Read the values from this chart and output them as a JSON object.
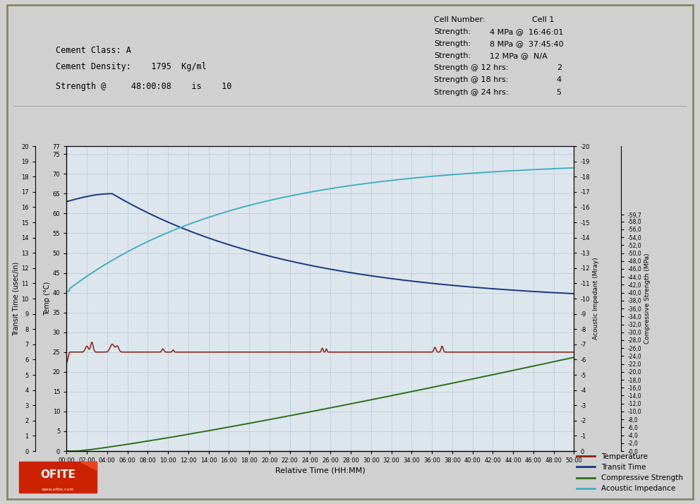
{
  "bg_color": "#d0d0d0",
  "plot_bg_color": "#dde6ed",
  "grid_color": "#b8c8d4",
  "title_info": {
    "cement_class": "Cement Class: A",
    "cement_density": "Cement Density:    1795  Kg/ml",
    "strength_at": "Strength @     48:00:08    is    10"
  },
  "xlabel": "Relative Time (HH:MM)",
  "ylabel_left_tt": "Transit Time (usec/in)",
  "ylabel_left_temp": "Temp (°C)",
  "ylabel_right_ai": "Acoustic Impedant (Mray)",
  "ylabel_right_cs": "Compressive Strength (MPa)",
  "colors": {
    "temperature": "#8b2010",
    "transit_time": "#1a3580",
    "compressive_strength": "#2d6e1a",
    "acoustic_impedance": "#40b0c0"
  },
  "legend_labels": [
    "Temperature",
    "Transit Time",
    "Compressive Strength",
    "Acoustic Impedance"
  ],
  "temp_ticks": [
    0,
    5,
    10,
    15,
    20,
    25,
    30,
    35,
    40,
    45,
    50,
    55,
    60,
    65,
    70,
    75,
    77
  ],
  "tt_ticks": [
    0,
    1,
    2,
    3,
    4,
    5,
    6,
    7,
    8,
    9,
    10,
    11,
    12,
    13,
    14,
    15,
    16,
    17,
    18,
    19,
    20
  ],
  "ai_ticks": [
    0,
    -1,
    -2,
    -3,
    -4,
    -5,
    -6,
    -7,
    -8,
    -9,
    -10,
    -11,
    -12,
    -13,
    -14,
    -15,
    -16,
    -17,
    -18,
    -19,
    -20
  ],
  "cs_tick_vals": [
    0,
    2,
    4,
    6,
    8,
    10,
    12,
    14,
    16,
    18,
    20,
    22,
    24,
    26,
    28,
    30,
    32,
    34,
    36,
    38,
    40,
    42,
    44,
    46,
    48,
    50,
    52,
    54,
    56,
    58,
    59.7
  ],
  "cs_tick_labels": [
    "-0,0",
    "-2,0",
    "-4,0",
    "-6,0",
    "-8,0",
    "-10,0",
    "-12,0",
    "-14,0",
    "-16,0",
    "-18,0",
    "-20,0",
    "-22,0",
    "-24,0",
    "-26,0",
    "-28,0",
    "-30,0",
    "-32,0",
    "-34,0",
    "-36,0",
    "-38,0",
    "-40,0",
    "-42,0",
    "-44,0",
    "-46,0",
    "-48,0",
    "-50,0",
    "-52,0",
    "-54,0",
    "-56,0",
    "-58,0",
    "-59,7"
  ]
}
